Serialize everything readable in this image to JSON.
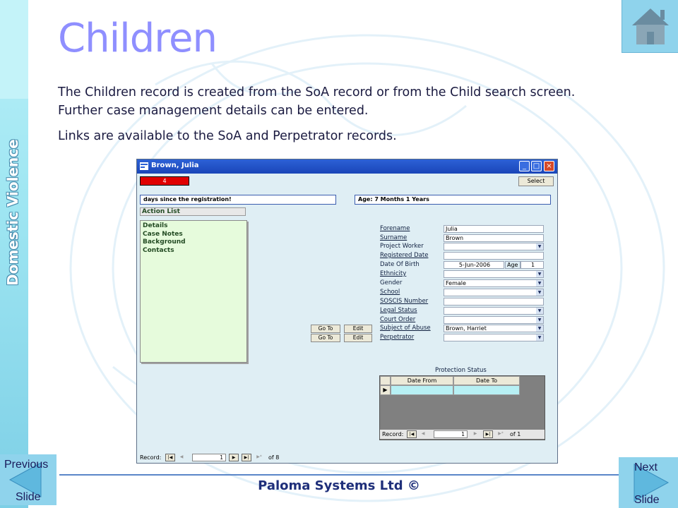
{
  "slide": {
    "title": "Children",
    "paragraph1": "The Children record is created from the SoA record or from the Child search screen. Further case management details can be entered.",
    "paragraph2": "Links are available to the SoA and Perpetrator records.",
    "side_label": "Domestic Violence",
    "footer": "Paloma Systems Ltd ©"
  },
  "nav": {
    "previous_top": "Previous",
    "previous_bottom": "Slide",
    "next_top": "Next",
    "next_bottom": "Slide",
    "home_icon": "home-icon"
  },
  "window": {
    "title": "Brown, Julia",
    "red_box_value": "4",
    "select_label": "Select",
    "days_text": "days since the registration!",
    "age_text": "Age: 7 Months 1 Years",
    "action_list_label": "Action List",
    "action_items": [
      "Details",
      "Case Notes",
      "Background",
      "Contacts"
    ],
    "fields": [
      {
        "label": "Forename",
        "value": "Julia"
      },
      {
        "label": "Surname",
        "value": "Brown"
      },
      {
        "label": "Project Worker",
        "value": ""
      },
      {
        "label": "Registered Date",
        "value": ""
      },
      {
        "label": "Date Of Birth",
        "value": "5-Jun-2006"
      },
      {
        "label": "Ethnicity",
        "value": ""
      },
      {
        "label": "Gender",
        "value": "Female"
      },
      {
        "label": "School",
        "value": ""
      },
      {
        "label": "SOSCIS Number",
        "value": ""
      },
      {
        "label": "Legal Status",
        "value": ""
      },
      {
        "label": "Court Order",
        "value": ""
      },
      {
        "label": "Subject of Abuse",
        "value": "Brown, Harriet"
      },
      {
        "label": "Perpetrator",
        "value": ""
      }
    ],
    "age_label": "Age",
    "age_value": "1",
    "goto_label": "Go To",
    "edit_label": "Edit",
    "protection_status_label": "Protection Status",
    "ps_col_from": "Date From",
    "ps_col_to": "Date To",
    "record_label": "Record:",
    "ps_record_num": "1",
    "ps_record_of": "of  1",
    "main_record_num": "1",
    "main_record_of": "of  8"
  }
}
